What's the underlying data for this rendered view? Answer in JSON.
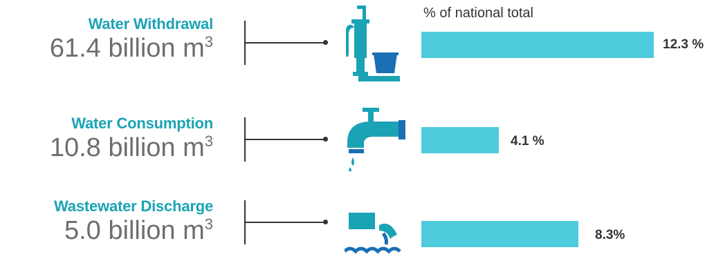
{
  "subtitle": "% of national total",
  "colors": {
    "accent": "#1aa3b5",
    "bar": "#4ecbdc",
    "icon_dark": "#1a6fb5",
    "text": "#6e6e6e"
  },
  "rows": [
    {
      "title": "Water Withdrawal",
      "amount": "61.4 billion m",
      "unit_sup": "3",
      "percent_label": "12.3 %",
      "icon": "hand-pump-icon"
    },
    {
      "title": "Water Consumption",
      "amount": "10.8 billion m",
      "unit_sup": "3",
      "percent_label": "4.1 %",
      "icon": "faucet-icon"
    },
    {
      "title": "Wastewater Discharge",
      "amount": "5.0 billion m",
      "unit_sup": "3",
      "percent_label": "8.3%",
      "icon": "discharge-pipe-icon"
    }
  ],
  "chart_data": {
    "type": "bar",
    "orientation": "horizontal",
    "categories": [
      "Water Withdrawal",
      "Water Consumption",
      "Wastewater Discharge"
    ],
    "values": [
      12.3,
      4.1,
      8.3
    ],
    "unit": "%"
  }
}
